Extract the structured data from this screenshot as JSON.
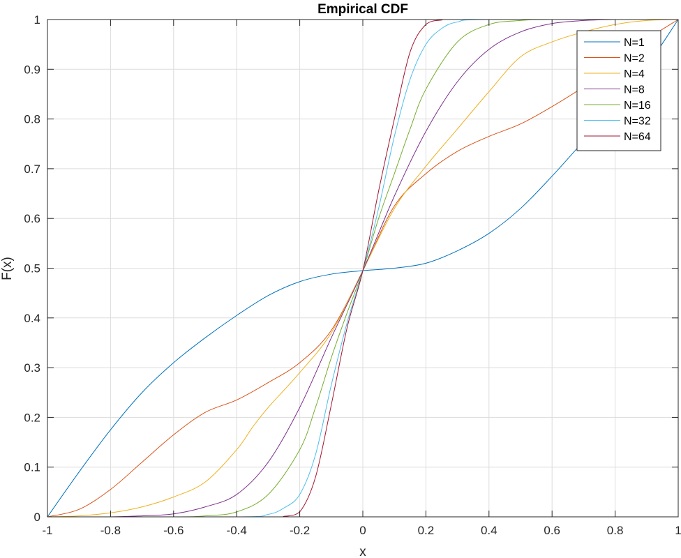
{
  "chart_data": {
    "type": "line",
    "title": "Empirical CDF",
    "xlabel": "x",
    "ylabel": "F(x)",
    "xlim": [
      -1,
      1
    ],
    "ylim": [
      0,
      1
    ],
    "xticks": [
      "-1",
      "-0.8",
      "-0.6",
      "-0.4",
      "-0.2",
      "0",
      "0.2",
      "0.4",
      "0.6",
      "0.8",
      "1"
    ],
    "yticks": [
      "0",
      "0.1",
      "0.2",
      "0.3",
      "0.4",
      "0.5",
      "0.6",
      "0.7",
      "0.8",
      "0.9",
      "1"
    ],
    "grid": true,
    "legend_location": "top-right",
    "series": [
      {
        "name": "N=1",
        "color": "#0072BD",
        "x": [
          -1,
          -0.9,
          -0.8,
          -0.7,
          -0.6,
          -0.5,
          -0.4,
          -0.3,
          -0.2,
          -0.1,
          0,
          0.1,
          0.2,
          0.3,
          0.4,
          0.5,
          0.6,
          0.7,
          0.8,
          0.9,
          1
        ],
        "y": [
          0,
          0.09,
          0.175,
          0.25,
          0.31,
          0.36,
          0.405,
          0.445,
          0.473,
          0.488,
          0.495,
          0.5,
          0.51,
          0.535,
          0.57,
          0.62,
          0.685,
          0.755,
          0.82,
          0.905,
          1
        ]
      },
      {
        "name": "N=2",
        "color": "#D95319",
        "x": [
          -1,
          -0.9,
          -0.8,
          -0.7,
          -0.6,
          -0.5,
          -0.4,
          -0.3,
          -0.2,
          -0.1,
          0,
          0.1,
          0.2,
          0.3,
          0.4,
          0.5,
          0.6,
          0.7,
          0.8,
          0.9,
          1
        ],
        "y": [
          0,
          0.015,
          0.055,
          0.11,
          0.165,
          0.21,
          0.235,
          0.27,
          0.31,
          0.375,
          0.495,
          0.625,
          0.69,
          0.735,
          0.765,
          0.79,
          0.825,
          0.865,
          0.915,
          0.96,
          1
        ]
      },
      {
        "name": "N=4",
        "color": "#EDB120",
        "x": [
          -1,
          -0.9,
          -0.8,
          -0.7,
          -0.6,
          -0.5,
          -0.4,
          -0.35,
          -0.3,
          -0.2,
          -0.1,
          0,
          0.1,
          0.2,
          0.3,
          0.4,
          0.5,
          0.6,
          0.7,
          0.8,
          0.9,
          1
        ],
        "y": [
          0,
          0.002,
          0.008,
          0.02,
          0.04,
          0.07,
          0.135,
          0.18,
          0.22,
          0.29,
          0.37,
          0.495,
          0.62,
          0.705,
          0.78,
          0.855,
          0.925,
          0.955,
          0.975,
          0.99,
          0.998,
          1
        ]
      },
      {
        "name": "N=8",
        "color": "#7E2F8E",
        "x": [
          -1,
          -0.8,
          -0.7,
          -0.6,
          -0.5,
          -0.4,
          -0.3,
          -0.2,
          -0.1,
          0,
          0.1,
          0.2,
          0.3,
          0.4,
          0.5,
          0.6,
          0.7,
          0.8,
          1
        ],
        "y": [
          0,
          0,
          0.002,
          0.006,
          0.02,
          0.045,
          0.11,
          0.22,
          0.36,
          0.495,
          0.645,
          0.775,
          0.875,
          0.94,
          0.975,
          0.992,
          0.998,
          1,
          1
        ]
      },
      {
        "name": "N=16",
        "color": "#77AC30",
        "x": [
          -1,
          -0.6,
          -0.5,
          -0.4,
          -0.3,
          -0.2,
          -0.15,
          -0.1,
          -0.05,
          0,
          0.05,
          0.1,
          0.15,
          0.2,
          0.3,
          0.4,
          0.5,
          0.6,
          1
        ],
        "y": [
          0,
          0,
          0.002,
          0.01,
          0.045,
          0.135,
          0.22,
          0.32,
          0.41,
          0.495,
          0.6,
          0.69,
          0.78,
          0.86,
          0.955,
          0.99,
          0.998,
          1,
          1
        ]
      },
      {
        "name": "N=32",
        "color": "#4DBEEE",
        "x": [
          -1,
          -0.4,
          -0.3,
          -0.25,
          -0.2,
          -0.15,
          -0.1,
          -0.05,
          0,
          0.05,
          0.1,
          0.15,
          0.2,
          0.25,
          0.3,
          0.4,
          1
        ],
        "y": [
          0,
          0,
          0.005,
          0.018,
          0.045,
          0.125,
          0.265,
          0.39,
          0.495,
          0.62,
          0.765,
          0.88,
          0.95,
          0.982,
          0.995,
          1,
          1
        ]
      },
      {
        "name": "N=64",
        "color": "#A2142F",
        "x": [
          -1,
          -0.3,
          -0.25,
          -0.2,
          -0.15,
          -0.1,
          -0.05,
          0,
          0.05,
          0.1,
          0.15,
          0.2,
          0.25,
          0.3,
          1
        ],
        "y": [
          0,
          0,
          0.001,
          0.01,
          0.08,
          0.225,
          0.38,
          0.495,
          0.655,
          0.8,
          0.935,
          0.99,
          0.999,
          1,
          1
        ]
      }
    ]
  }
}
